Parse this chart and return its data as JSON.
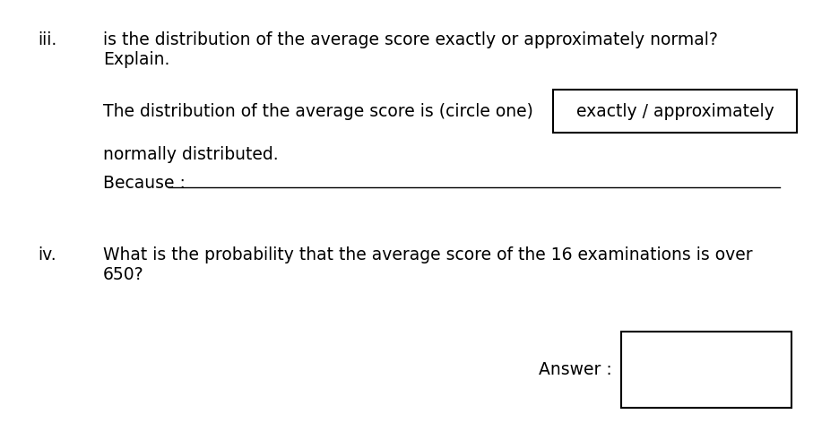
{
  "background_color": "#ffffff",
  "label_iii": "iii.",
  "label_iv": "iv.",
  "text_iii_line1": "is the distribution of the average score exactly or approximately normal?",
  "text_iii_line2": "Explain.",
  "text_dist_prefix": "The distribution of the average score is (circle one)",
  "text_box_content": "exactly / approximately",
  "text_normally": "normally distributed.",
  "text_because": "Because :",
  "text_iv_line1": "What is the probability that the average score of the 16 examinations is over",
  "text_iv_line2": "650?",
  "text_answer": "Answer :",
  "font_size_body": 13.5,
  "fig_width": 9.07,
  "fig_height": 4.72,
  "dpi": 100
}
